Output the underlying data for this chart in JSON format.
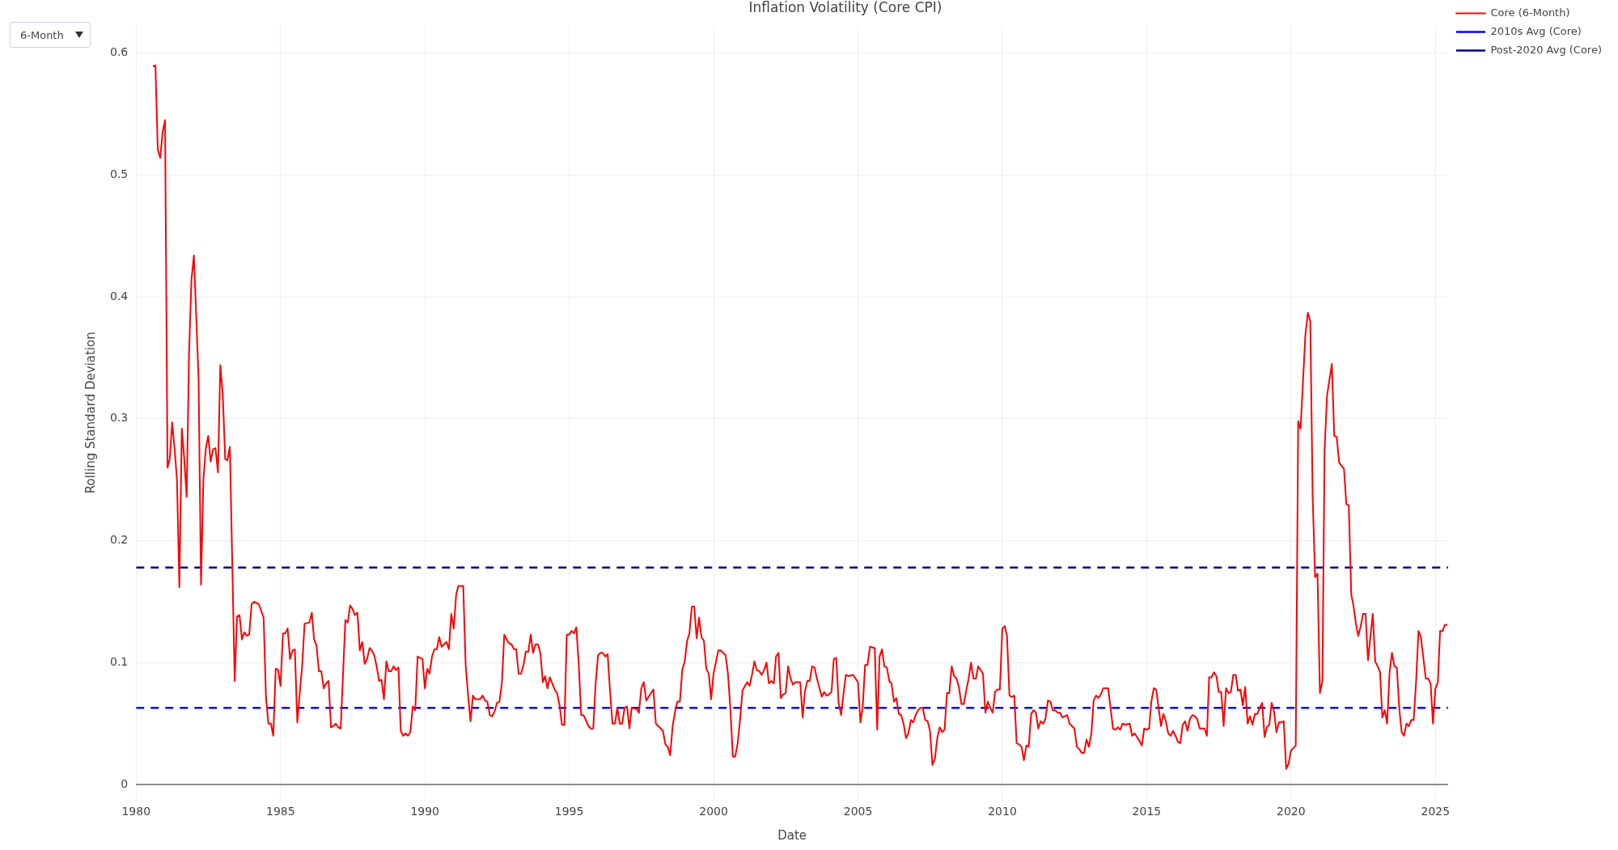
{
  "chart_data": {
    "type": "line",
    "title": "Inflation Volatility (Core CPI)",
    "xlabel": "Date",
    "ylabel": "Rolling Standard Deviation",
    "annotations": [
      "6-Month"
    ],
    "xlim": [
      "1980-01",
      "2025-06-10"
    ],
    "xticks": [
      "1980",
      "1985",
      "1990",
      "1995",
      "2000",
      "2005",
      "2010",
      "2015",
      "2020",
      "2025"
    ],
    "ylim": [
      -0.012,
      0.622
    ],
    "yticks": [
      0,
      0.1,
      0.2,
      0.3,
      0.4,
      0.5,
      0.6
    ],
    "grid": true,
    "legend": "top right",
    "marker": "none",
    "series": [
      {
        "name": "Core (6-Month)",
        "color": "#ff0000",
        "line_style": "solid",
        "x": [
          "1980-08",
          "1980-09",
          "1980-10",
          "1980-11",
          "1980-12",
          "1981-01",
          "1981-02",
          "1981-03",
          "1981-04",
          "1981-05",
          "1981-06",
          "1981-07",
          "1981-08",
          "1981-09",
          "1981-10",
          "1981-11",
          "1981-12",
          "1982-01",
          "1982-02",
          "1982-03",
          "1982-04",
          "1982-05",
          "1982-06",
          "1982-07",
          "1982-08",
          "1982-09",
          "1982-10",
          "1982-11",
          "1982-12",
          "1983-01",
          "1983-02",
          "1983-03",
          "1983-04",
          "1983-06",
          "1983-07",
          "1983-08",
          "1983-09",
          "1983-10",
          "1983-11",
          "1983-12",
          "1984-01",
          "1984-02",
          "1984-04",
          "1984-06",
          "1984-07",
          "1984-08",
          "1984-09",
          "1984-10",
          "1984-11",
          "1984-12",
          "1985-01",
          "1985-02",
          "1985-03",
          "1985-04",
          "1985-05",
          "1985-06",
          "1985-07",
          "1985-08",
          "1985-09",
          "1985-10",
          "1985-11",
          "1986-01",
          "1986-02",
          "1986-03",
          "1986-04",
          "1986-05",
          "1986-06",
          "1986-07",
          "1986-08",
          "1986-09",
          "1986-10",
          "1986-11",
          "1986-12",
          "1987-01",
          "1987-02",
          "1987-04",
          "1987-05",
          "1987-06",
          "1987-07",
          "1987-08",
          "1987-09",
          "1987-10",
          "1987-11",
          "1987-12",
          "1988-01",
          "1988-02",
          "1988-03",
          "1988-04",
          "1988-05",
          "1988-06",
          "1988-07",
          "1988-08",
          "1988-09",
          "1988-10",
          "1988-11",
          "1988-12",
          "1989-01",
          "1989-02",
          "1989-03",
          "1989-04",
          "1989-05",
          "1989-06",
          "1989-07",
          "1989-08",
          "1989-09",
          "1989-10",
          "1989-12",
          "1990-01",
          "1990-02",
          "1990-03",
          "1990-04",
          "1990-05",
          "1990-06",
          "1990-07",
          "1990-08",
          "1990-10",
          "1990-11",
          "1990-12",
          "1991-01",
          "1991-02",
          "1991-03",
          "1991-05",
          "1991-06",
          "1991-07",
          "1991-08",
          "1991-09",
          "1991-10",
          "1991-12",
          "1992-01",
          "1992-02",
          "1992-03",
          "1992-04",
          "1992-05",
          "1992-06",
          "1992-07",
          "1992-08",
          "1992-09",
          "1992-10",
          "1992-11",
          "1992-12",
          "1993-01",
          "1993-02",
          "1993-03",
          "1993-04",
          "1993-05",
          "1993-06",
          "1993-07",
          "1993-08",
          "1993-09",
          "1993-10",
          "1993-11",
          "1993-12",
          "1994-01",
          "1994-02",
          "1994-03",
          "1994-04",
          "1994-05",
          "1994-07",
          "1994-08",
          "1994-09",
          "1994-10",
          "1994-11",
          "1994-12",
          "1995-01",
          "1995-02",
          "1995-03",
          "1995-04",
          "1995-05",
          "1995-06",
          "1995-07",
          "1995-09",
          "1995-10",
          "1995-11",
          "1995-12",
          "1996-01",
          "1996-02",
          "1996-03",
          "1996-04",
          "1996-05",
          "1996-06",
          "1996-07",
          "1996-08",
          "1996-09",
          "1996-10",
          "1996-11",
          "1996-12",
          "1997-01",
          "1997-02",
          "1997-03",
          "1997-05",
          "1997-06",
          "1997-07",
          "1997-08",
          "1997-09",
          "1997-12",
          "1998-01",
          "1998-02",
          "1998-04",
          "1998-05",
          "1998-06",
          "1998-07",
          "1998-08",
          "1998-09",
          "1998-10",
          "1998-11",
          "1998-12",
          "1999-01",
          "1999-02",
          "1999-03",
          "1999-04",
          "1999-05",
          "1999-06",
          "1999-07",
          "1999-08",
          "1999-09",
          "1999-10",
          "1999-11",
          "1999-12",
          "2000-01",
          "2000-03",
          "2000-04",
          "2000-06",
          "2000-07",
          "2000-08",
          "2000-09",
          "2000-10",
          "2000-11",
          "2000-12",
          "2001-01",
          "2001-02",
          "2001-03",
          "2001-04",
          "2001-05",
          "2001-06",
          "2001-07",
          "2001-08",
          "2001-09",
          "2001-10",
          "2001-11",
          "2001-12",
          "2002-01",
          "2002-02",
          "2002-03",
          "2002-04",
          "2002-05",
          "2002-06",
          "2002-07",
          "2002-08",
          "2002-09",
          "2002-10",
          "2002-11",
          "2003-01",
          "2003-02",
          "2003-03",
          "2003-04",
          "2003-05",
          "2003-06",
          "2003-07",
          "2003-08",
          "2003-10",
          "2003-11",
          "2003-12",
          "2004-01",
          "2004-02",
          "2004-03",
          "2004-04",
          "2004-05",
          "2004-06",
          "2004-07",
          "2004-08",
          "2004-09",
          "2004-11",
          "2004-12",
          "2005-01",
          "2005-02",
          "2005-03",
          "2005-04",
          "2005-05",
          "2005-06",
          "2005-08",
          "2005-09",
          "2005-10",
          "2005-11",
          "2005-12",
          "2006-01",
          "2006-02",
          "2006-03",
          "2006-04",
          "2006-05",
          "2006-06",
          "2006-07",
          "2006-08",
          "2006-09",
          "2006-10",
          "2006-11",
          "2006-12",
          "2007-01",
          "2007-02",
          "2007-03",
          "2007-04",
          "2007-05",
          "2007-06",
          "2007-07",
          "2007-08",
          "2007-09",
          "2007-10",
          "2007-11",
          "2007-12",
          "2008-01",
          "2008-02",
          "2008-03",
          "2008-04",
          "2008-05",
          "2008-06",
          "2008-07",
          "2008-08",
          "2008-09",
          "2008-10",
          "2008-11",
          "2008-12",
          "2009-01",
          "2009-02",
          "2009-03",
          "2009-04",
          "2009-05",
          "2009-06",
          "2009-07",
          "2009-08",
          "2009-09",
          "2009-10",
          "2009-11",
          "2009-12",
          "2010-01",
          "2010-02",
          "2010-03",
          "2010-04",
          "2010-05",
          "2010-06",
          "2010-07",
          "2010-08",
          "2010-09",
          "2010-10",
          "2010-11",
          "2010-12",
          "2011-01",
          "2011-02",
          "2011-03",
          "2011-04",
          "2011-05",
          "2011-06",
          "2011-07",
          "2011-08",
          "2011-09",
          "2011-10",
          "2011-11",
          "2011-12",
          "2012-01",
          "2012-02",
          "2012-04",
          "2012-05",
          "2012-07",
          "2012-08",
          "2012-09",
          "2012-10",
          "2012-11",
          "2012-12",
          "2013-01",
          "2013-02",
          "2013-03",
          "2013-04",
          "2013-05",
          "2013-06",
          "2013-07",
          "2013-09",
          "2013-10",
          "2013-11",
          "2013-12",
          "2014-01",
          "2014-02",
          "2014-03",
          "2014-04",
          "2014-06",
          "2014-07",
          "2014-08",
          "2014-09",
          "2014-10",
          "2014-11",
          "2014-12",
          "2015-01",
          "2015-02",
          "2015-03",
          "2015-04",
          "2015-05",
          "2015-06",
          "2015-07",
          "2015-08",
          "2015-09",
          "2015-10",
          "2015-11",
          "2015-12",
          "2016-01",
          "2016-02",
          "2016-03",
          "2016-04",
          "2016-05",
          "2016-06",
          "2016-07",
          "2016-08",
          "2016-09",
          "2016-10",
          "2016-11",
          "2016-12",
          "2017-01",
          "2017-02",
          "2017-03",
          "2017-04",
          "2017-05",
          "2017-06",
          "2017-07",
          "2017-08",
          "2017-09",
          "2017-10",
          "2017-11",
          "2017-12",
          "2018-01",
          "2018-02",
          "2018-03",
          "2018-04",
          "2018-05",
          "2018-06",
          "2018-07",
          "2018-08",
          "2018-09",
          "2018-10",
          "2018-11",
          "2018-12",
          "2019-01",
          "2019-02",
          "2019-03",
          "2019-04",
          "2019-05",
          "2019-06",
          "2019-07",
          "2019-08",
          "2019-09",
          "2019-10",
          "2019-11",
          "2019-12",
          "2020-01",
          "2020-02",
          "2020-03",
          "2020-04",
          "2020-05",
          "2020-07",
          "2020-08",
          "2020-09",
          "2020-10",
          "2020-11",
          "2020-12",
          "2021-01",
          "2021-02",
          "2021-03",
          "2021-04",
          "2021-06",
          "2021-07",
          "2021-08",
          "2021-09",
          "2021-11",
          "2021-12",
          "2022-01",
          "2022-02",
          "2022-03",
          "2022-04",
          "2022-05",
          "2022-06",
          "2022-07",
          "2022-08",
          "2022-09",
          "2022-10",
          "2022-11",
          "2022-12",
          "2023-01",
          "2023-02",
          "2023-03",
          "2023-04",
          "2023-05",
          "2023-06",
          "2023-07",
          "2023-08",
          "2023-09",
          "2023-10",
          "2023-11",
          "2023-12",
          "2024-01",
          "2024-02",
          "2024-03",
          "2024-04",
          "2024-05",
          "2024-06",
          "2024-07",
          "2024-08",
          "2024-09",
          "2024-10",
          "2024-11",
          "2024-12",
          "2025-01",
          "2025-02",
          "2025-03",
          "2025-04",
          "2025-05",
          "2025-06"
        ],
        "values": [
          0.589,
          0.59,
          0.521,
          0.514,
          0.535,
          0.545,
          0.26,
          0.267,
          0.297,
          0.276,
          0.25,
          0.162,
          0.292,
          0.267,
          0.236,
          0.355,
          0.414,
          0.434,
          0.381,
          0.333,
          0.164,
          0.25,
          0.276,
          0.286,
          0.265,
          0.275,
          0.276,
          0.256,
          0.344,
          0.32,
          0.267,
          0.266,
          0.277,
          0.085,
          0.138,
          0.139,
          0.119,
          0.125,
          0.122,
          0.123,
          0.148,
          0.15,
          0.148,
          0.137,
          0.071,
          0.05,
          0.05,
          0.04,
          0.095,
          0.094,
          0.081,
          0.124,
          0.124,
          0.128,
          0.103,
          0.11,
          0.111,
          0.051,
          0.075,
          0.097,
          0.132,
          0.133,
          0.141,
          0.119,
          0.114,
          0.093,
          0.093,
          0.079,
          0.083,
          0.085,
          0.047,
          0.048,
          0.05,
          0.047,
          0.046,
          0.135,
          0.133,
          0.147,
          0.144,
          0.139,
          0.141,
          0.11,
          0.117,
          0.099,
          0.103,
          0.112,
          0.11,
          0.106,
          0.097,
          0.085,
          0.086,
          0.07,
          0.101,
          0.093,
          0.093,
          0.097,
          0.094,
          0.096,
          0.044,
          0.04,
          0.042,
          0.04,
          0.043,
          0.064,
          0.061,
          0.105,
          0.103,
          0.079,
          0.095,
          0.091,
          0.105,
          0.111,
          0.111,
          0.121,
          0.113,
          0.117,
          0.111,
          0.14,
          0.128,
          0.156,
          0.163,
          0.163,
          0.098,
          0.074,
          0.052,
          0.073,
          0.07,
          0.07,
          0.073,
          0.069,
          0.068,
          0.057,
          0.056,
          0.06,
          0.067,
          0.068,
          0.083,
          0.123,
          0.119,
          0.116,
          0.115,
          0.111,
          0.111,
          0.091,
          0.091,
          0.098,
          0.109,
          0.109,
          0.123,
          0.108,
          0.115,
          0.115,
          0.108,
          0.084,
          0.089,
          0.079,
          0.088,
          0.078,
          0.075,
          0.065,
          0.049,
          0.049,
          0.123,
          0.123,
          0.126,
          0.124,
          0.129,
          0.099,
          0.057,
          0.057,
          0.048,
          0.046,
          0.046,
          0.083,
          0.106,
          0.108,
          0.108,
          0.105,
          0.107,
          0.076,
          0.05,
          0.05,
          0.063,
          0.05,
          0.05,
          0.063,
          0.064,
          0.046,
          0.063,
          0.062,
          0.059,
          0.079,
          0.084,
          0.069,
          0.078,
          0.05,
          0.048,
          0.044,
          0.033,
          0.031,
          0.024,
          0.048,
          0.06,
          0.068,
          0.068,
          0.094,
          0.101,
          0.118,
          0.124,
          0.146,
          0.146,
          0.12,
          0.137,
          0.121,
          0.118,
          0.095,
          0.091,
          0.07,
          0.091,
          0.11,
          0.11,
          0.106,
          0.091,
          0.062,
          0.023,
          0.023,
          0.034,
          0.053,
          0.077,
          0.081,
          0.084,
          0.081,
          0.09,
          0.101,
          0.094,
          0.093,
          0.09,
          0.094,
          0.1,
          0.083,
          0.085,
          0.083,
          0.105,
          0.108,
          0.071,
          0.074,
          0.075,
          0.097,
          0.087,
          0.082,
          0.084,
          0.084,
          0.055,
          0.076,
          0.085,
          0.085,
          0.097,
          0.096,
          0.087,
          0.072,
          0.076,
          0.073,
          0.074,
          0.076,
          0.103,
          0.104,
          0.067,
          0.057,
          0.074,
          0.09,
          0.089,
          0.09,
          0.087,
          0.084,
          0.051,
          0.063,
          0.098,
          0.098,
          0.113,
          0.112,
          0.045,
          0.105,
          0.111,
          0.097,
          0.096,
          0.085,
          0.083,
          0.068,
          0.071,
          0.058,
          0.057,
          0.05,
          0.038,
          0.042,
          0.053,
          0.051,
          0.057,
          0.061,
          0.063,
          0.063,
          0.053,
          0.052,
          0.044,
          0.016,
          0.021,
          0.038,
          0.047,
          0.043,
          0.045,
          0.075,
          0.075,
          0.097,
          0.089,
          0.087,
          0.08,
          0.066,
          0.066,
          0.077,
          0.087,
          0.1,
          0.087,
          0.087,
          0.097,
          0.094,
          0.091,
          0.059,
          0.068,
          0.063,
          0.059,
          0.076,
          0.078,
          0.078,
          0.128,
          0.13,
          0.122,
          0.073,
          0.072,
          0.073,
          0.034,
          0.033,
          0.031,
          0.02,
          0.032,
          0.031,
          0.058,
          0.061,
          0.059,
          0.046,
          0.052,
          0.05,
          0.054,
          0.069,
          0.068,
          0.061,
          0.061,
          0.059,
          0.059,
          0.055,
          0.057,
          0.05,
          0.046,
          0.031,
          0.029,
          0.026,
          0.026,
          0.037,
          0.031,
          0.042,
          0.069,
          0.073,
          0.071,
          0.074,
          0.079,
          0.079,
          0.063,
          0.046,
          0.045,
          0.047,
          0.045,
          0.05,
          0.049,
          0.05,
          0.04,
          0.042,
          0.039,
          0.036,
          0.032,
          0.046,
          0.045,
          0.046,
          0.068,
          0.079,
          0.078,
          0.063,
          0.048,
          0.058,
          0.052,
          0.042,
          0.04,
          0.044,
          0.04,
          0.035,
          0.034,
          0.049,
          0.052,
          0.044,
          0.054,
          0.057,
          0.056,
          0.054,
          0.046,
          0.046,
          0.046,
          0.04,
          0.088,
          0.088,
          0.092,
          0.089,
          0.076,
          0.076,
          0.048,
          0.079,
          0.075,
          0.076,
          0.09,
          0.09,
          0.077,
          0.078,
          0.065,
          0.08,
          0.05,
          0.056,
          0.049,
          0.058,
          0.058,
          0.063,
          0.067,
          0.039,
          0.047,
          0.049,
          0.067,
          0.06,
          0.043,
          0.051,
          0.051,
          0.052,
          0.013,
          0.017,
          0.028,
          0.03,
          0.032,
          0.298,
          0.292,
          0.369,
          0.387,
          0.38,
          0.236,
          0.17,
          0.173,
          0.075,
          0.085,
          0.275,
          0.319,
          0.345,
          0.286,
          0.285,
          0.264,
          0.259,
          0.23,
          0.229,
          0.156,
          0.147,
          0.132,
          0.122,
          0.13,
          0.14,
          0.14,
          0.102,
          0.121,
          0.14,
          0.101,
          0.097,
          0.092,
          0.055,
          0.061,
          0.05,
          0.092,
          0.108,
          0.097,
          0.096,
          0.063,
          0.043,
          0.04,
          0.05,
          0.048,
          0.053,
          0.053,
          0.084,
          0.126,
          0.121,
          0.104,
          0.087,
          0.087,
          0.083,
          0.05,
          0.079,
          0.084,
          0.126,
          0.126,
          0.131,
          0.131
        ]
      },
      {
        "name": "2010s Avg (Core)",
        "color": "#0000ff",
        "line_style": "dashed",
        "x": [
          "1980-01",
          "2025-06-10"
        ],
        "values": [
          0.063,
          0.063
        ]
      },
      {
        "name": "Post-2020 Avg (Core)",
        "color": "#00008b",
        "line_style": "dashed",
        "x": [
          "1980-01",
          "2025-06-10"
        ],
        "values": [
          0.178,
          0.178
        ]
      }
    ]
  }
}
